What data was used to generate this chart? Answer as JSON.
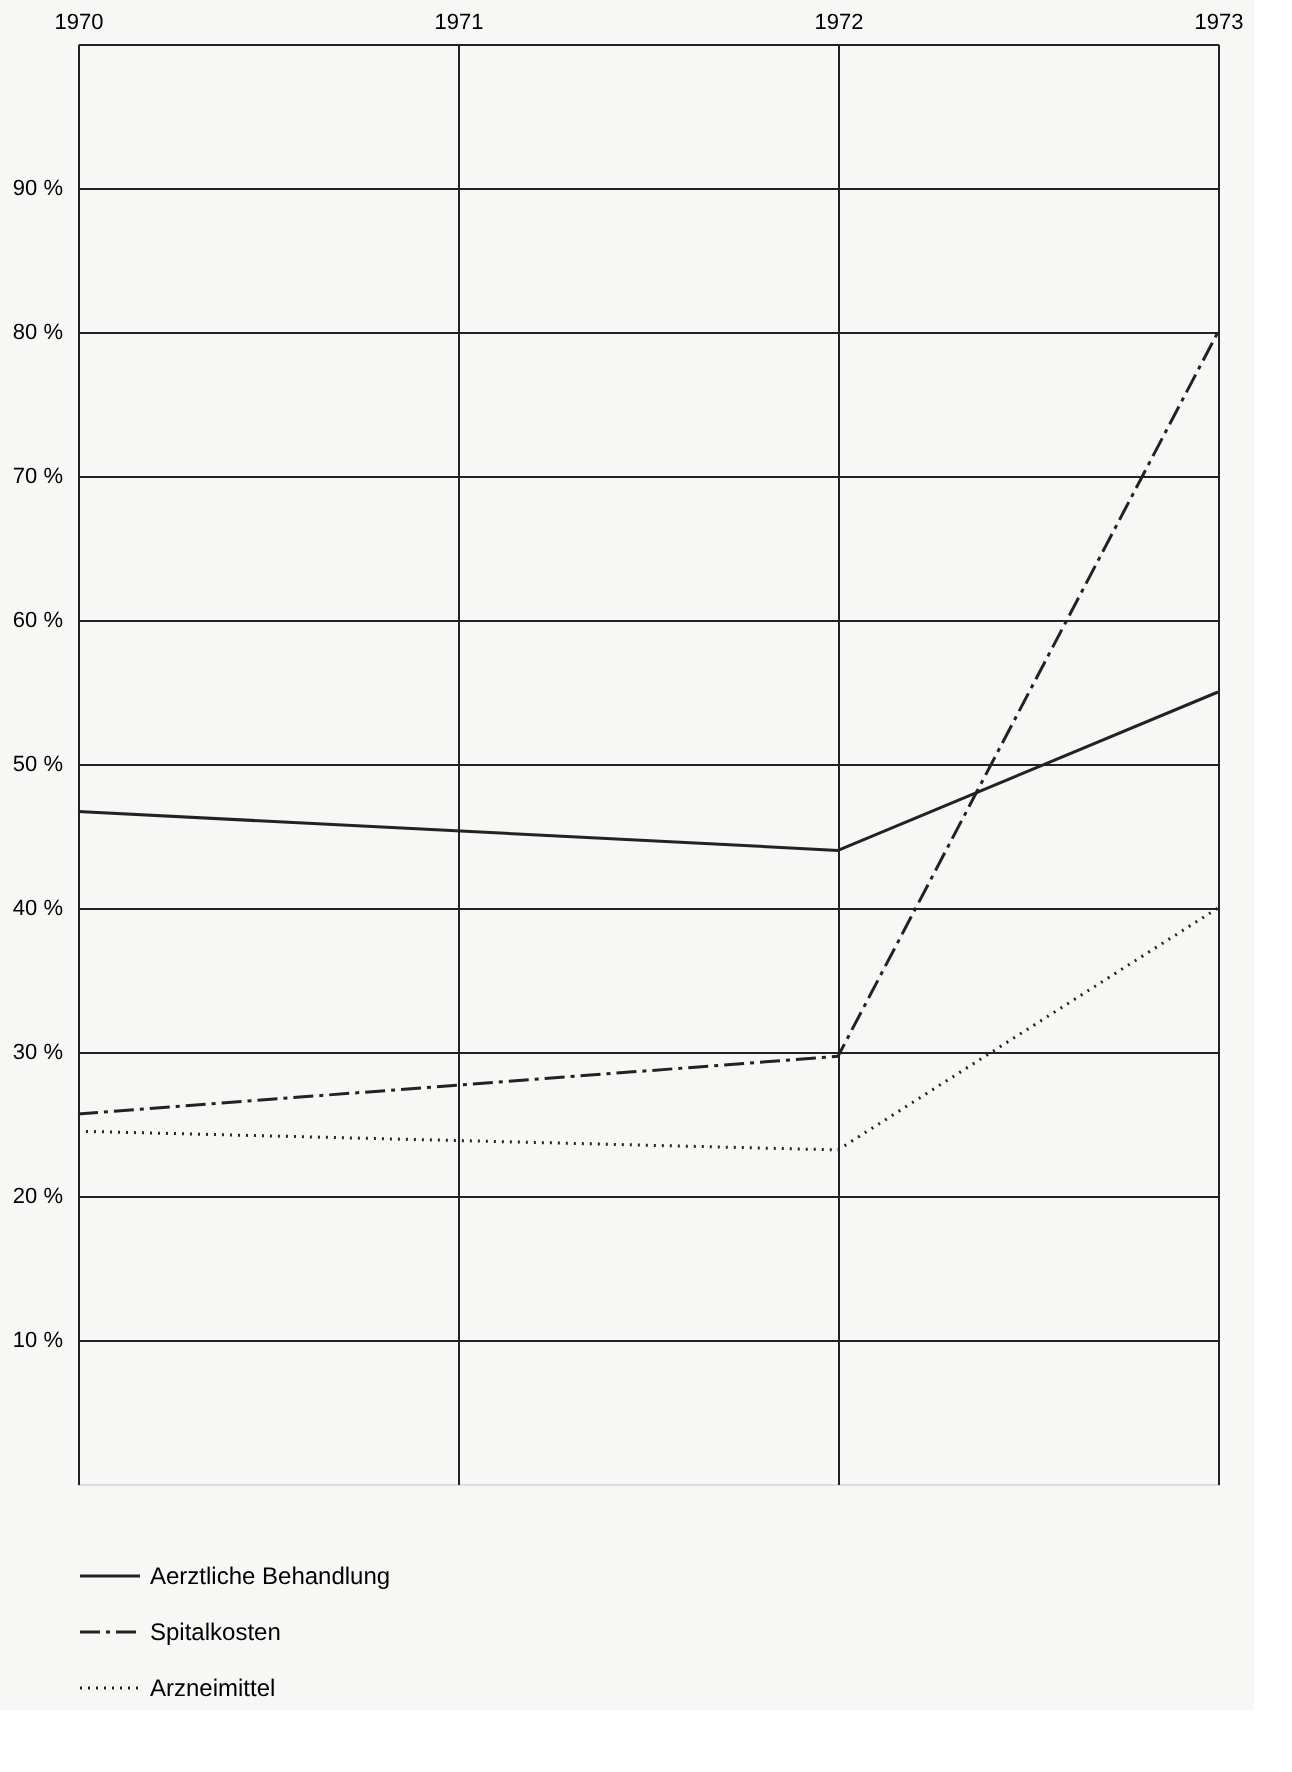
{
  "chart_data": {
    "type": "line",
    "x": [
      1970,
      1971,
      1972,
      1973
    ],
    "xlim": [
      1970,
      1973
    ],
    "xticks": [
      1970,
      1971,
      1972,
      1973
    ],
    "ylim": [
      0,
      100
    ],
    "yticks": [
      {
        "value": 10,
        "label": "10 %"
      },
      {
        "value": 20,
        "label": "20 %"
      },
      {
        "value": 30,
        "label": "30 %"
      },
      {
        "value": 40,
        "label": "40 %"
      },
      {
        "value": 50,
        "label": "50 %"
      },
      {
        "value": 60,
        "label": "60 %"
      },
      {
        "value": 70,
        "label": "70 %"
      },
      {
        "value": 80,
        "label": "80 %"
      },
      {
        "value": 90,
        "label": "90 %"
      }
    ],
    "grid": true,
    "legend": "bottom left",
    "marker": "none",
    "series": [
      {
        "name": "Aerztliche Behandlung",
        "color": "#222222",
        "line_style": "solid",
        "values": [
          46.7,
          null,
          44,
          55
        ]
      },
      {
        "name": "Spitalkosten",
        "color": "#222222",
        "line_style": "dashed",
        "values": [
          25.7,
          null,
          29.7,
          80
        ]
      },
      {
        "name": "Arzneimittel",
        "color": "#222222",
        "line_style": "dotted",
        "values": [
          24.5,
          null,
          23.2,
          40
        ]
      }
    ]
  }
}
